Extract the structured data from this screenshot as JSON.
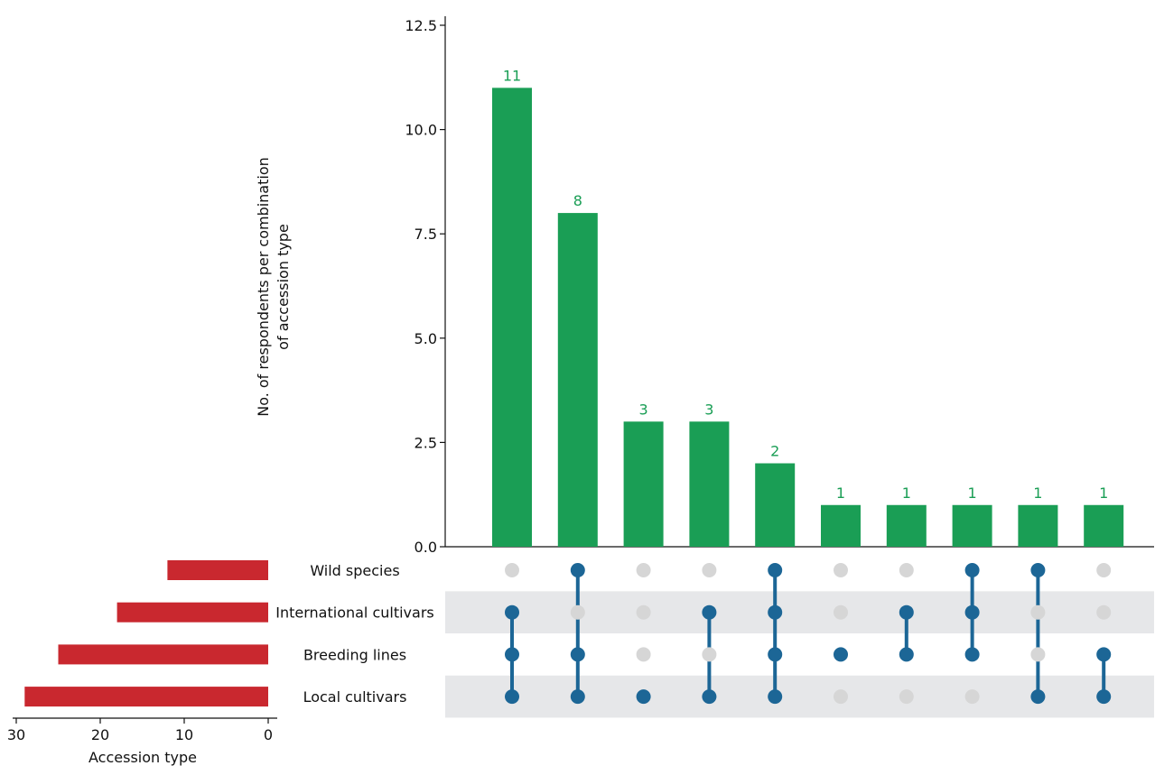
{
  "chart_data": {
    "type": "bar",
    "title": "",
    "sets": [
      "Wild species",
      "International cultivars",
      "Breeding lines",
      "Local cultivars"
    ],
    "intersections": {
      "ylabel": "No. of respondents per combination of accession type",
      "ylabel_lines": [
        "No. of respondents per combination",
        "of accession type"
      ],
      "ylim": [
        0,
        12.5
      ],
      "yticks": [
        "0.0",
        "2.5",
        "5.0",
        "7.5",
        "10.0",
        "12.5"
      ],
      "ytick_values": [
        0,
        2.5,
        5,
        7.5,
        10,
        12.5
      ],
      "values": [
        11,
        8,
        3,
        3,
        2,
        1,
        1,
        1,
        1,
        1
      ],
      "value_labels": [
        "11",
        "8",
        "3",
        "3",
        "2",
        "1",
        "1",
        "1",
        "1",
        "1"
      ],
      "memberships": [
        [
          "International cultivars",
          "Breeding lines",
          "Local cultivars"
        ],
        [
          "Wild species",
          "Breeding lines",
          "Local cultivars"
        ],
        [
          "Local cultivars"
        ],
        [
          "International cultivars",
          "Local cultivars"
        ],
        [
          "Wild species",
          "International cultivars",
          "Breeding lines",
          "Local cultivars"
        ],
        [
          "Breeding lines"
        ],
        [
          "International cultivars",
          "Breeding lines"
        ],
        [
          "Wild species",
          "International cultivars",
          "Breeding lines"
        ],
        [
          "Wild species",
          "Local cultivars"
        ],
        [
          "Breeding lines",
          "Local cultivars"
        ]
      ]
    },
    "set_sizes": {
      "xlabel": "Accession type",
      "xlim": [
        30,
        0
      ],
      "xticks": [
        "30",
        "20",
        "10",
        "0"
      ],
      "xtick_values": [
        30,
        20,
        10,
        0
      ],
      "values": [
        12,
        18,
        25,
        29
      ]
    },
    "colors": {
      "intersection_bar": "#1a9e55",
      "set_size_bar": "#c9282f",
      "active_dot": "#1c6696",
      "inactive_dot": "#d6d6d6",
      "row_shade": "#e6e7e9",
      "bar_label": "#1a9e55"
    }
  }
}
